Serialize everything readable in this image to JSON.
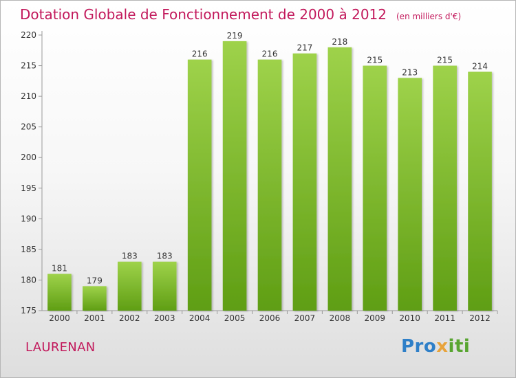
{
  "title": "Dotation Globale de Fonctionnement de 2000 à 2012",
  "unit_note": "(en milliers d'€)",
  "commune": "LAURENAN",
  "brand": {
    "text": "Proxiti",
    "part1": "Pro",
    "part2": "x",
    "part3": "iti",
    "colors": [
      "#2e7fc8",
      "#e8a33a",
      "#58a531"
    ]
  },
  "colors": {
    "title": "#c2185b",
    "bar_top": "#9ed24a",
    "bar_bottom": "#5f9e14"
  },
  "chart_data": {
    "type": "bar",
    "categories": [
      "2000",
      "2001",
      "2002",
      "2003",
      "2004",
      "2005",
      "2006",
      "2007",
      "2008",
      "2009",
      "2010",
      "2011",
      "2012"
    ],
    "values": [
      181,
      179,
      183,
      183,
      216,
      219,
      216,
      217,
      218,
      215,
      213,
      215,
      214
    ],
    "ylim": [
      175,
      220
    ],
    "yticks": [
      175,
      180,
      185,
      190,
      195,
      200,
      205,
      210,
      215,
      220
    ],
    "grid": false,
    "legend": "none"
  }
}
